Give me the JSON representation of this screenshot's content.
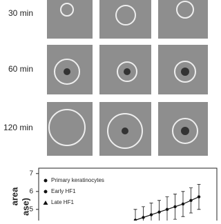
{
  "panels": {
    "row_labels": [
      "30 min",
      "60 min",
      "120 min"
    ]
  },
  "chart_data": {
    "type": "line",
    "y_label_fragments": [
      "area",
      "ase)"
    ],
    "categories": [
      null,
      null,
      null,
      null,
      null,
      null,
      null,
      null,
      null
    ],
    "series": [
      {
        "name": "Primary keratinocytes",
        "color": "#111111",
        "values": [
          4.4,
          4.55,
          4.7,
          4.85,
          5.0,
          5.15,
          5.3,
          5.5,
          5.7
        ],
        "errors": [
          0.6,
          0.6,
          0.65,
          0.65,
          0.7,
          0.7,
          0.7,
          0.7,
          0.7
        ]
      }
    ],
    "legend_entries": [
      "Primary keratinocytes",
      "Early HF1",
      "Late HF1"
    ],
    "ylim": [
      4.3,
      7.3
    ],
    "yticks": [
      5,
      6,
      7
    ]
  }
}
